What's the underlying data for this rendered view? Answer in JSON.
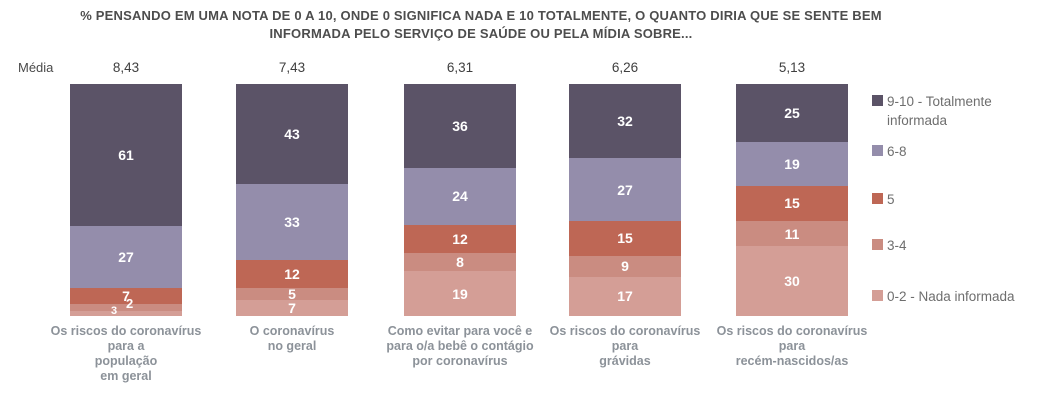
{
  "chart_data": {
    "type": "bar",
    "stacked": true,
    "unit": "%",
    "title": "% PENSANDO EM UMA NOTA DE 0 A 10, ONDE 0 SIGNIFICA NADA E 10 TOTALMENTE, O QUANTO DIRIA QUE SE SENTE BEM\nINFORMADA PELO SERVIÇO DE SAÚDE OU PELA MÍDIA SOBRE...",
    "means_label": "Média",
    "means": [
      "8,43",
      "7,43",
      "6,31",
      "6,26",
      "5,13"
    ],
    "categories": [
      "Os riscos do coronavírus\npara a\npopulação\nem geral",
      "O coronavírus\nno geral",
      "Como evitar para você e\npara o/a bebê o contágio\npor coronavírus",
      "Os riscos do coronavírus\npara\ngrávidas",
      "Os riscos do coronavírus\npara\nrecém-nascidos/as"
    ],
    "series": [
      {
        "name": "9-10 - Totalmente informada",
        "color": "#5b5367",
        "values": [
          61,
          43,
          36,
          32,
          25
        ]
      },
      {
        "name": "6-8",
        "color": "#948dab",
        "values": [
          27,
          33,
          24,
          27,
          19
        ]
      },
      {
        "name": "5",
        "color": "#be6755",
        "values": [
          7,
          12,
          12,
          15,
          15
        ]
      },
      {
        "name": "3-4",
        "color": "#ca8c81",
        "values": [
          3,
          5,
          8,
          9,
          11
        ]
      },
      {
        "name": "0-2 - Nada informada",
        "color": "#d49e96",
        "values": [
          2,
          7,
          19,
          17,
          30
        ]
      }
    ],
    "ylim": [
      0,
      100
    ],
    "grid": false,
    "legend_position": "right"
  }
}
